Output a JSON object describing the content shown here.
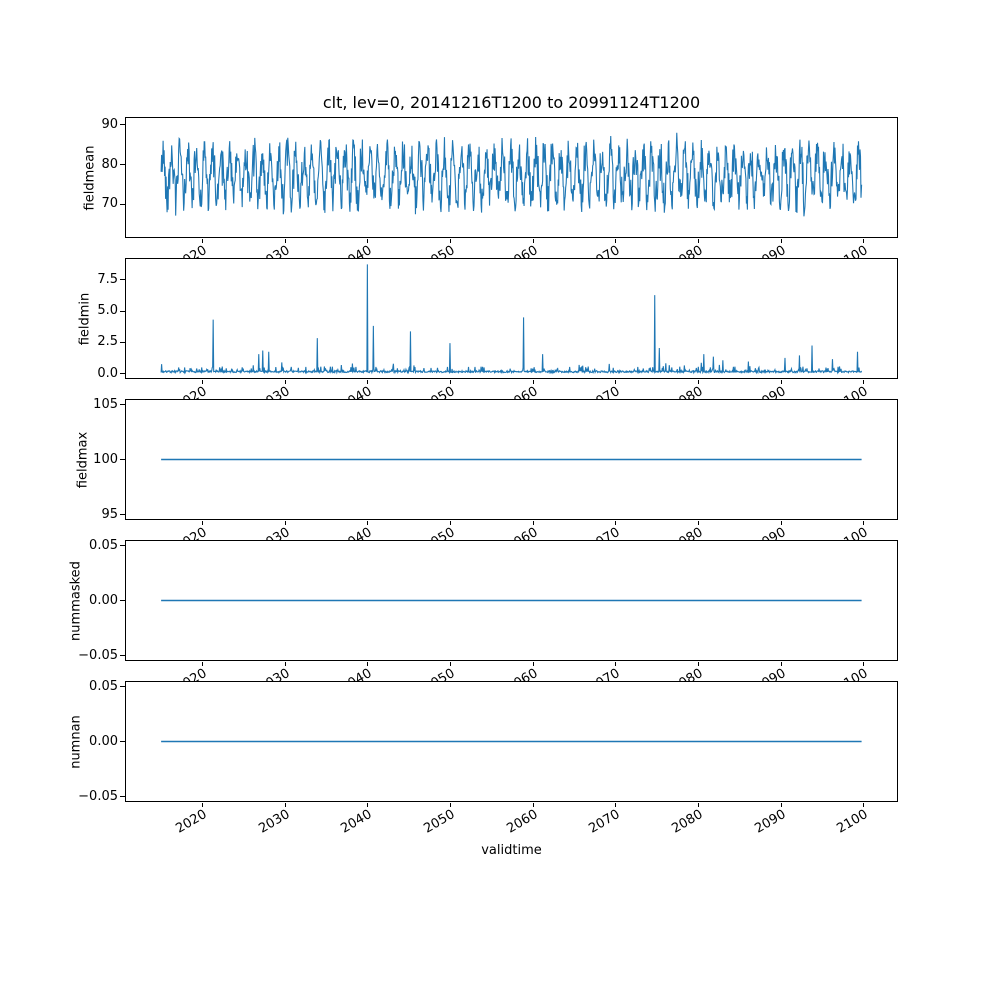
{
  "figure": {
    "background": "#ffffff",
    "line_color": "#1f77b4"
  },
  "chart_data": {
    "type": "line",
    "title": "clt, lev=0, 20141216T1200 to 20991124T1200",
    "xlabel": "validtime",
    "x_range_years": [
      2014.96,
      2099.9
    ],
    "xlim": [
      2010.7,
      2104.2
    ],
    "xticks": [
      2020,
      2030,
      2040,
      2050,
      2060,
      2070,
      2080,
      2090,
      2100
    ],
    "xtick_labels": [
      "2020",
      "2030",
      "2040",
      "2050",
      "2060",
      "2070",
      "2080",
      "2090",
      "2100"
    ],
    "xtick_rotation_deg": 30,
    "legend": "none",
    "grid": false,
    "subplots": [
      {
        "ylabel": "fieldmean",
        "ytick_vals": [
          70,
          80,
          90
        ],
        "ytick_labels": [
          "70",
          "80",
          "90"
        ],
        "ylim": [
          61.6,
          91.9
        ],
        "series": {
          "kind": "noise",
          "seed": 42,
          "n": 1400,
          "mean": 77.3,
          "seasonal_amp": 5.5,
          "seasonal_freq": 0.38,
          "noise_amp": 4.5,
          "extreme_chance": 0.04,
          "extreme_amp": 4.5,
          "min": 63.0,
          "max": 90.6
        }
      },
      {
        "ylabel": "fieldmin",
        "ytick_vals": [
          0.0,
          2.5,
          5.0,
          7.5
        ],
        "ytick_labels": [
          "0.0",
          "2.5",
          "5.0",
          "7.5"
        ],
        "ylim": [
          -0.44,
          9.24
        ],
        "series": {
          "kind": "baseline_spikes",
          "seed": 7,
          "n": 1400,
          "baseline_typ": 0.15,
          "baseline_max": 0.85,
          "spikes": [
            [
              2021.3,
              4.3
            ],
            [
              2026.8,
              1.5
            ],
            [
              2027.3,
              1.8
            ],
            [
              2028.0,
              1.7
            ],
            [
              2033.9,
              2.8
            ],
            [
              2040.0,
              8.8
            ],
            [
              2040.7,
              3.8
            ],
            [
              2045.2,
              3.35
            ],
            [
              2050.0,
              2.4
            ],
            [
              2058.9,
              4.5
            ],
            [
              2061.2,
              1.5
            ],
            [
              2074.8,
              6.3
            ],
            [
              2075.4,
              2.0
            ],
            [
              2080.8,
              1.5
            ],
            [
              2081.9,
              1.3
            ],
            [
              2083.1,
              1.0
            ],
            [
              2086.2,
              0.9
            ],
            [
              2090.6,
              1.2
            ],
            [
              2092.4,
              1.4
            ],
            [
              2093.9,
              2.2
            ],
            [
              2096.4,
              1.1
            ],
            [
              2099.4,
              1.7
            ]
          ]
        }
      },
      {
        "ylabel": "fieldmax",
        "ytick_vals": [
          95,
          100,
          105
        ],
        "ytick_labels": [
          "95",
          "100",
          "105"
        ],
        "ylim": [
          94.5,
          105.5
        ],
        "series": {
          "kind": "constant",
          "value": 100.0
        }
      },
      {
        "ylabel": "nummasked",
        "ytick_vals": [
          -0.05,
          0.0,
          0.05
        ],
        "ytick_labels": [
          "−0.05",
          "0.00",
          "0.05"
        ],
        "ylim": [
          -0.055,
          0.055
        ],
        "series": {
          "kind": "constant",
          "value": 0.0
        }
      },
      {
        "ylabel": "numnan",
        "ytick_vals": [
          -0.05,
          0.0,
          0.05
        ],
        "ytick_labels": [
          "−0.05",
          "0.00",
          "0.05"
        ],
        "ylim": [
          -0.055,
          0.055
        ],
        "series": {
          "kind": "constant",
          "value": 0.0
        }
      }
    ]
  }
}
